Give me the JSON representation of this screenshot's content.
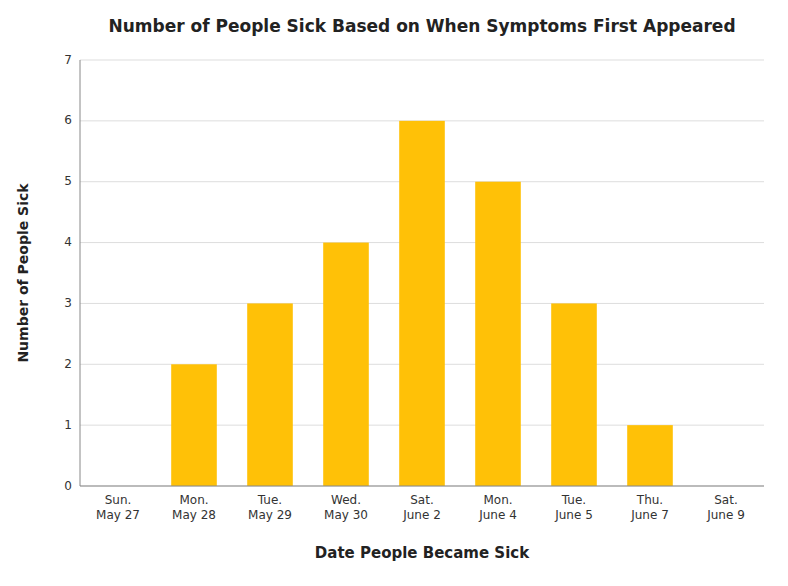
{
  "chart_data": {
    "type": "bar",
    "title": "Number of People Sick Based on When Symptoms First Appeared",
    "xlabel": "Date People Became Sick",
    "ylabel": "Number of People Sick",
    "categories": [
      "Sun.\nMay 27",
      "Mon.\nMay 28",
      "Tue.\nMay 29",
      "Wed.\nMay 30",
      "Sat.\nJune 2",
      "Mon.\nJune 4",
      "Tue.\nJune 5",
      "Thu.\nJune 7",
      "Sat.\nJune 9"
    ],
    "values": [
      0,
      2,
      3,
      4,
      6,
      5,
      3,
      1,
      0
    ],
    "color": "#FFC107",
    "ylim": [
      0,
      7
    ],
    "yticks": [
      0,
      1,
      2,
      3,
      4,
      5,
      6,
      7
    ],
    "grid": true
  }
}
